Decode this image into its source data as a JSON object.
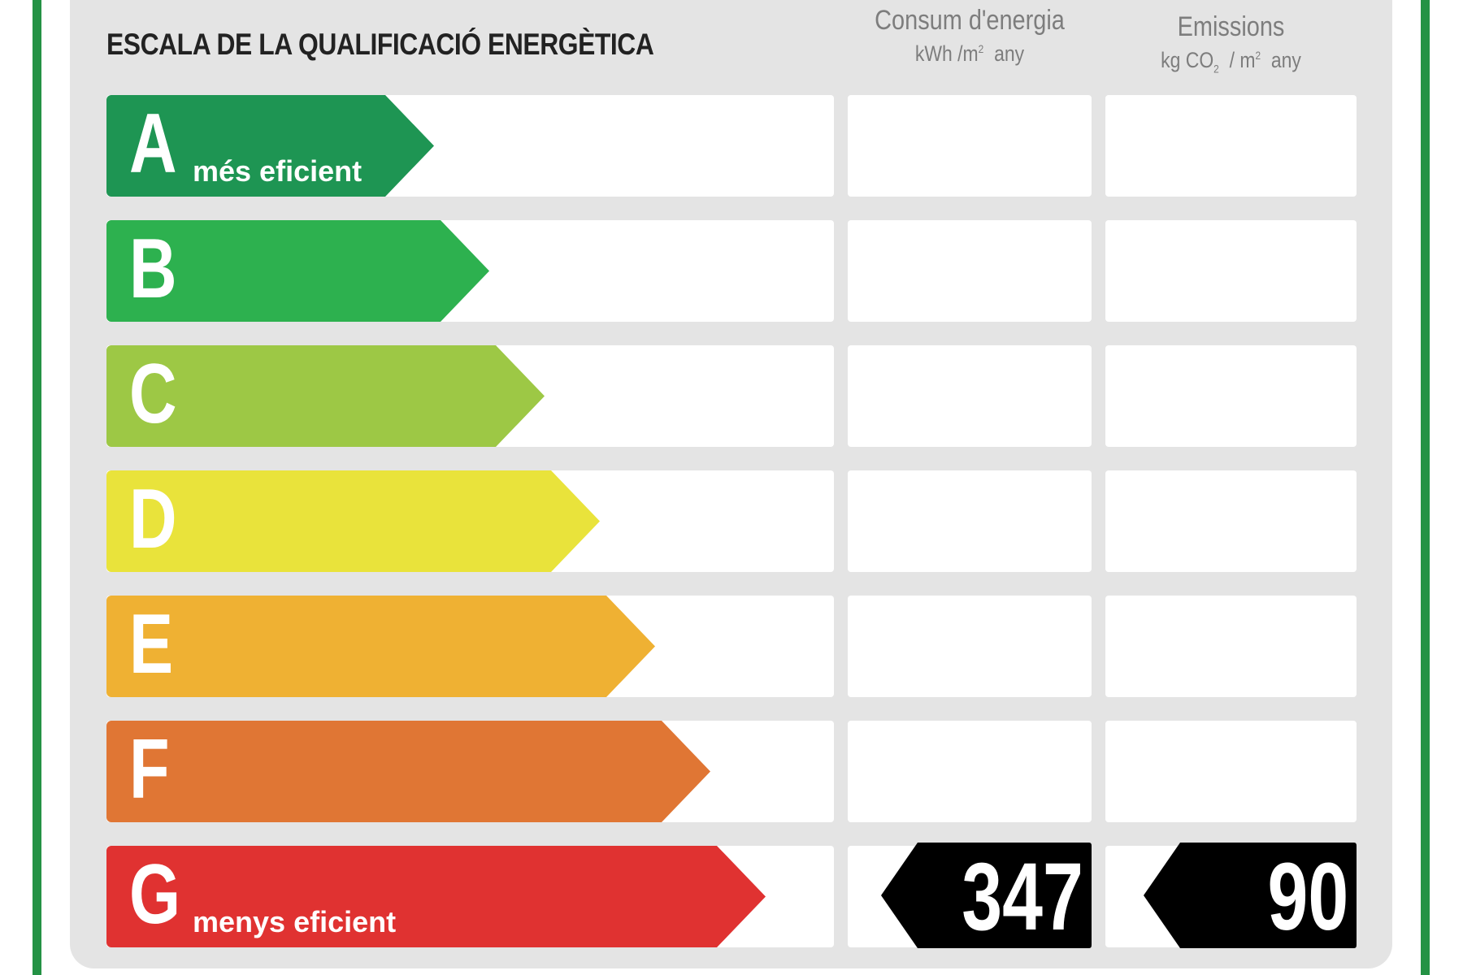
{
  "title": "ESCALA DE LA QUALIFICACIÓ ENERGÈTICA",
  "columns": {
    "energy": {
      "title": "Consum d'energia",
      "unit_main": "kWh /m",
      "unit_sup": "2",
      "unit_tail": "any"
    },
    "emissions": {
      "title": "Emissions",
      "unit_kg": "kg CO",
      "unit_sub": "2",
      "unit_mid": "/ m",
      "unit_sup": "2",
      "unit_tail": "any"
    }
  },
  "ratings": [
    {
      "letter": "A",
      "label": "més eficient",
      "color": "#1e9553"
    },
    {
      "letter": "B",
      "label": "",
      "color": "#2db14f"
    },
    {
      "letter": "C",
      "label": "",
      "color": "#9dc845"
    },
    {
      "letter": "D",
      "label": "",
      "color": "#e9e33b"
    },
    {
      "letter": "E",
      "label": "",
      "color": "#efb133"
    },
    {
      "letter": "F",
      "label": "",
      "color": "#e07634"
    },
    {
      "letter": "G",
      "label": "menys eficient",
      "color": "#e03231"
    }
  ],
  "result": {
    "rating": "G",
    "energy_value": "347",
    "emissions_value": "90"
  },
  "colors": {
    "frame": "#249245",
    "panel": "#e4e4e4",
    "badge": "#000000"
  }
}
